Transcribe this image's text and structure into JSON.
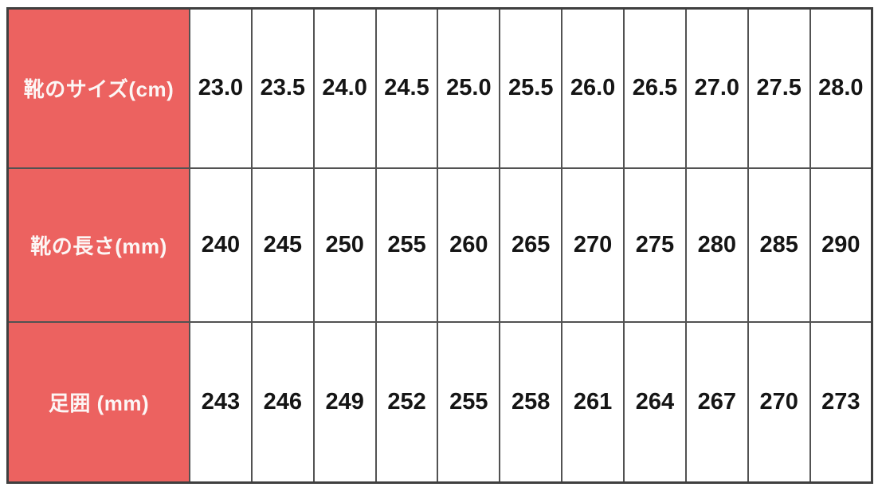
{
  "table": {
    "rows": [
      {
        "header": "靴のサイズ(cm)",
        "values": [
          "23.0",
          "23.5",
          "24.0",
          "24.5",
          "25.0",
          "25.5",
          "26.0",
          "26.5",
          "27.0",
          "27.5",
          "28.0"
        ]
      },
      {
        "header": "靴の長さ(mm)",
        "values": [
          "240",
          "245",
          "250",
          "255",
          "260",
          "265",
          "270",
          "275",
          "280",
          "285",
          "290"
        ]
      },
      {
        "header": "足囲 (mm)",
        "values": [
          "243",
          "246",
          "249",
          "252",
          "255",
          "258",
          "261",
          "264",
          "267",
          "270",
          "273"
        ]
      }
    ],
    "colors": {
      "header_bg": "#ec6260",
      "header_text": "#fcf6f5",
      "cell_bg": "#ffffff",
      "cell_text": "#151515",
      "grid_border": "#525252",
      "outer_border": "#3f3f3f"
    }
  },
  "chart_data": {
    "type": "table",
    "rows": [
      {
        "label": "靴のサイズ(cm)",
        "values": [
          23.0,
          23.5,
          24.0,
          24.5,
          25.0,
          25.5,
          26.0,
          26.5,
          27.0,
          27.5,
          28.0
        ]
      },
      {
        "label": "靴の長さ(mm)",
        "values": [
          240,
          245,
          250,
          255,
          260,
          265,
          270,
          275,
          280,
          285,
          290
        ]
      },
      {
        "label": "足囲 (mm)",
        "values": [
          243,
          246,
          249,
          252,
          255,
          258,
          261,
          264,
          267,
          270,
          273
        ]
      }
    ],
    "title": "",
    "notes": "Shoe size conversion table: size in cm, shoe length in mm, foot girth in mm; grid on; red row-header column"
  }
}
